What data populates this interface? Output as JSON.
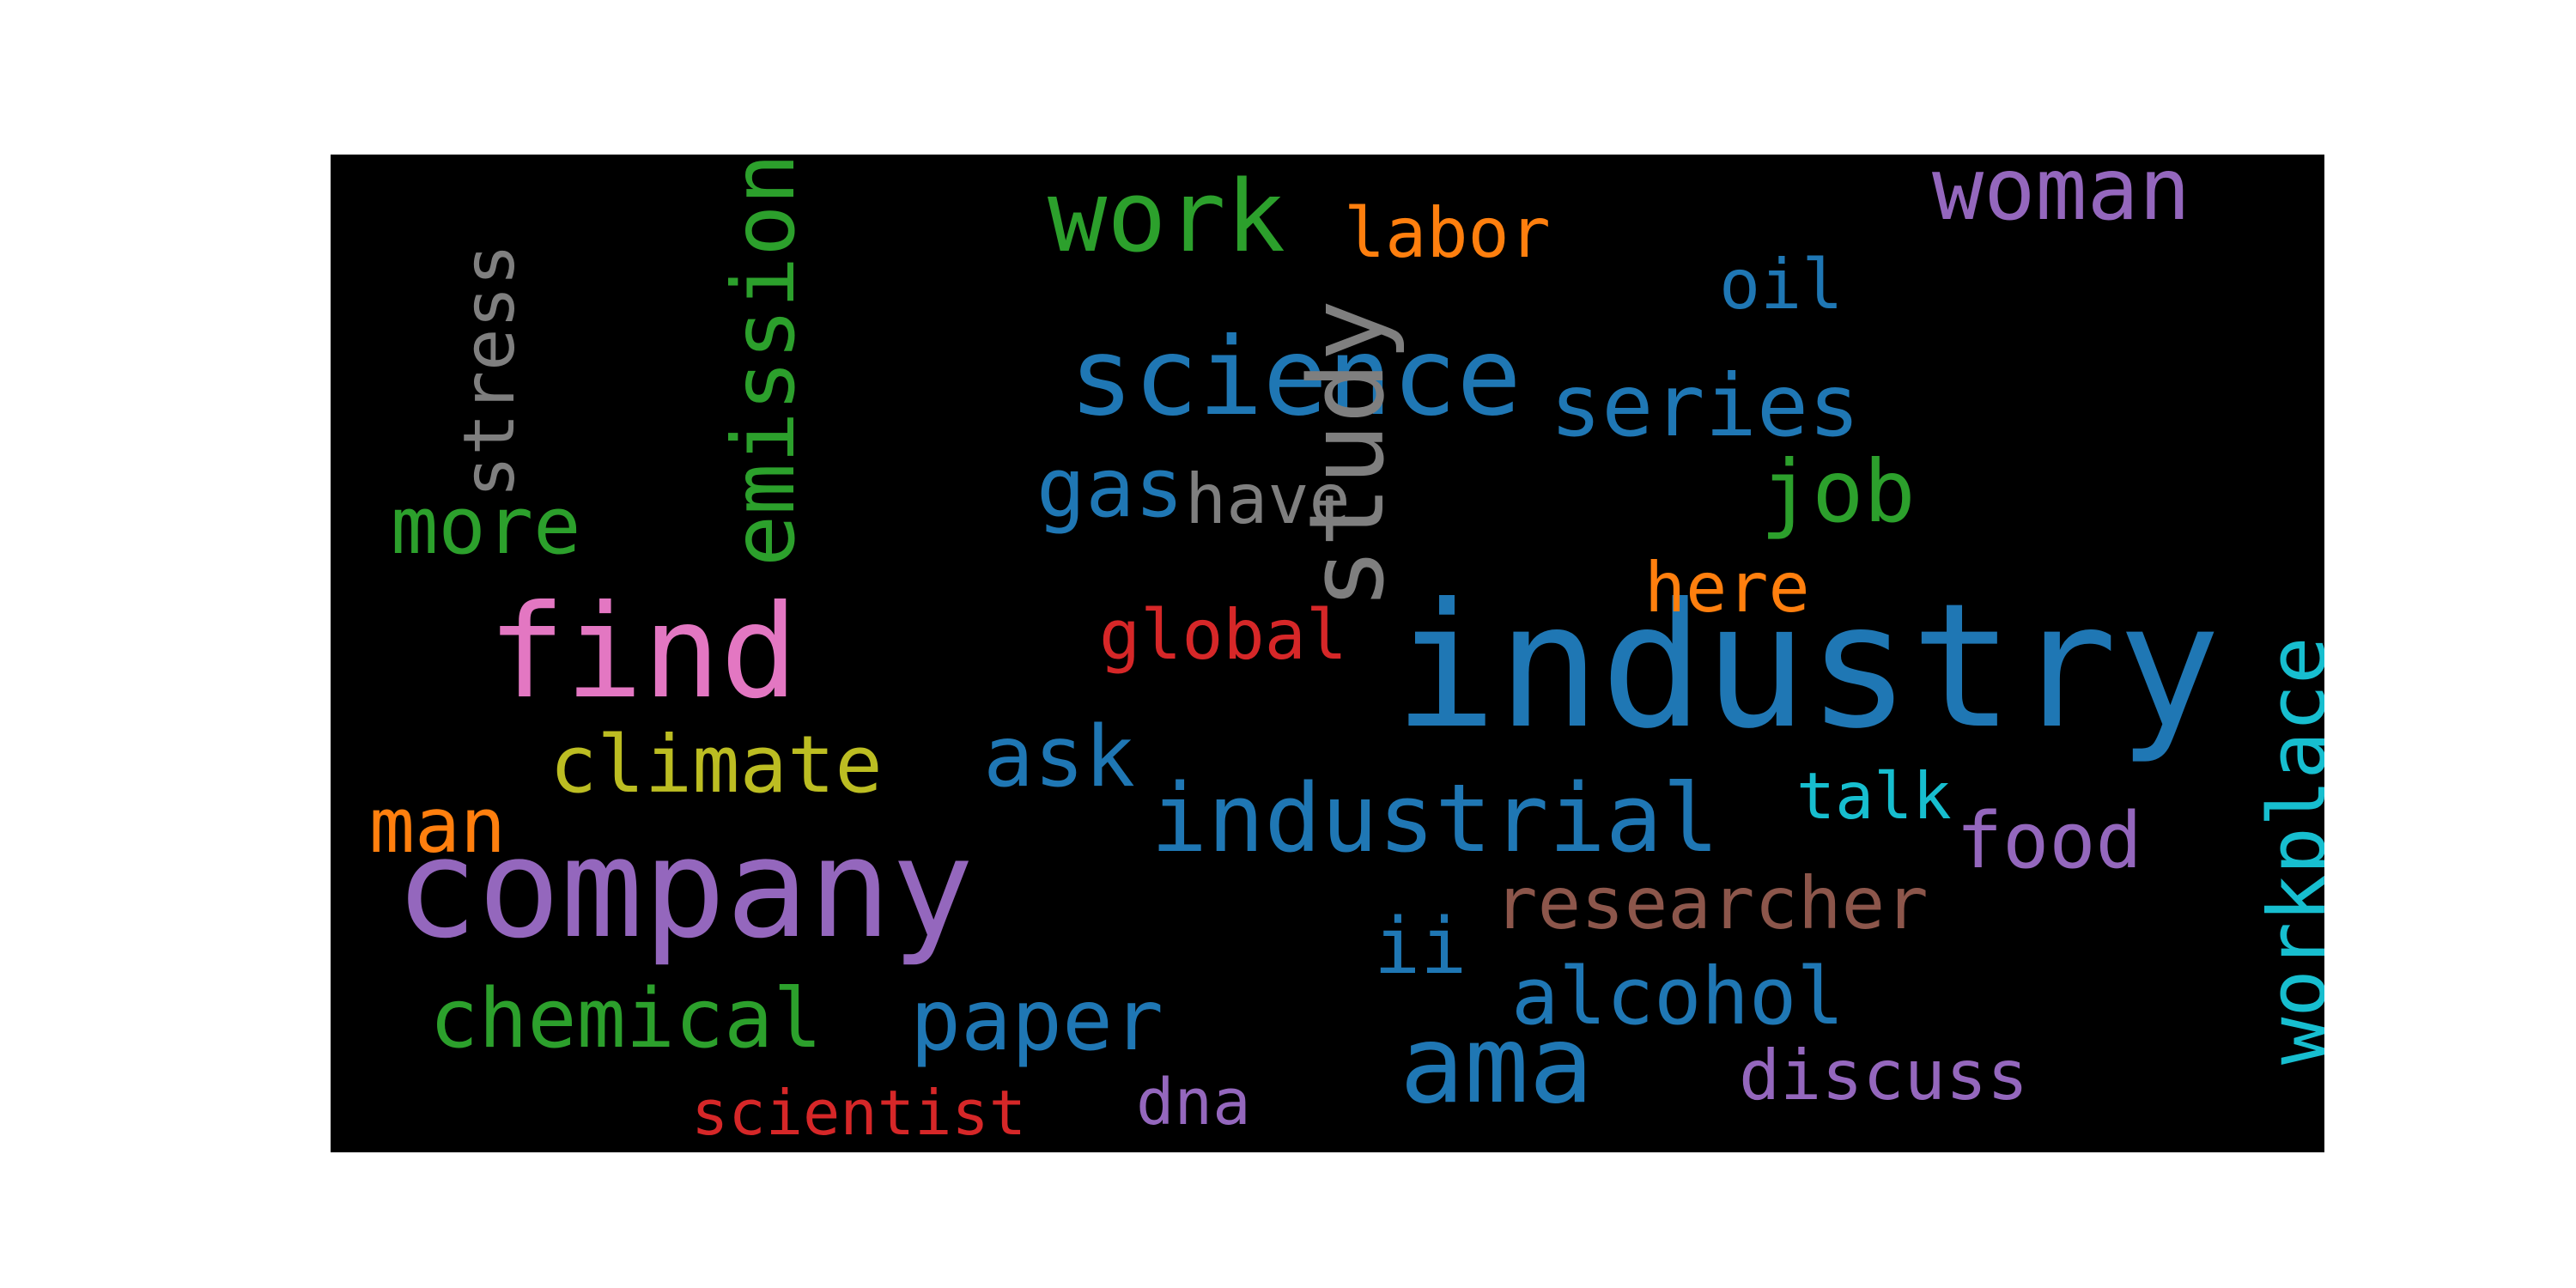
{
  "words": [
    {
      "text": "industry",
      "color": "#1f77b4",
      "vertical": false
    },
    {
      "text": "company",
      "color": "#9467bd",
      "vertical": false
    },
    {
      "text": "find",
      "color": "#e377c2",
      "vertical": false
    },
    {
      "text": "science",
      "color": "#1f77b4",
      "vertical": false
    },
    {
      "text": "ama",
      "color": "#1f77b4",
      "vertical": false
    },
    {
      "text": "study",
      "color": "#7f7f7f",
      "vertical": true
    },
    {
      "text": "industrial",
      "color": "#1f77b4",
      "vertical": false
    },
    {
      "text": "work",
      "color": "#2ca02c",
      "vertical": false
    },
    {
      "text": "series",
      "color": "#1f77b4",
      "vertical": false
    },
    {
      "text": "emission",
      "color": "#2ca02c",
      "vertical": true
    },
    {
      "text": "job",
      "color": "#2ca02c",
      "vertical": false
    },
    {
      "text": "climate",
      "color": "#bcbd22",
      "vertical": false
    },
    {
      "text": "woman",
      "color": "#9467bd",
      "vertical": false
    },
    {
      "text": "workplace",
      "color": "#17becf",
      "vertical": true
    },
    {
      "text": "ask",
      "color": "#1f77b4",
      "vertical": false
    },
    {
      "text": "paper",
      "color": "#1f77b4",
      "vertical": false
    },
    {
      "text": "chemical",
      "color": "#2ca02c",
      "vertical": false
    },
    {
      "text": "stress",
      "color": "#7f7f7f",
      "vertical": true
    },
    {
      "text": "more",
      "color": "#2ca02c",
      "vertical": false
    },
    {
      "text": "alcohol",
      "color": "#1f77b4",
      "vertical": false
    },
    {
      "text": "researcher",
      "color": "#8c564b",
      "vertical": false
    },
    {
      "text": "gas",
      "color": "#1f77b4",
      "vertical": false
    },
    {
      "text": "man",
      "color": "#ff7f0e",
      "vertical": false
    },
    {
      "text": "ii",
      "color": "#1f77b4",
      "vertical": false
    },
    {
      "text": "food",
      "color": "#9467bd",
      "vertical": false
    },
    {
      "text": "labor",
      "color": "#ff7f0e",
      "vertical": false
    },
    {
      "text": "have",
      "color": "#7f7f7f",
      "vertical": false
    },
    {
      "text": "here",
      "color": "#ff7f0e",
      "vertical": false
    },
    {
      "text": "global",
      "color": "#d62728",
      "vertical": false
    },
    {
      "text": "oil",
      "color": "#1f77b4",
      "vertical": false
    },
    {
      "text": "discuss",
      "color": "#9467bd",
      "vertical": false
    },
    {
      "text": "dna",
      "color": "#9467bd",
      "vertical": false
    },
    {
      "text": "scientist",
      "color": "#d62728",
      "vertical": false
    },
    {
      "text": "talk",
      "color": "#17becf",
      "vertical": false
    }
  ]
}
